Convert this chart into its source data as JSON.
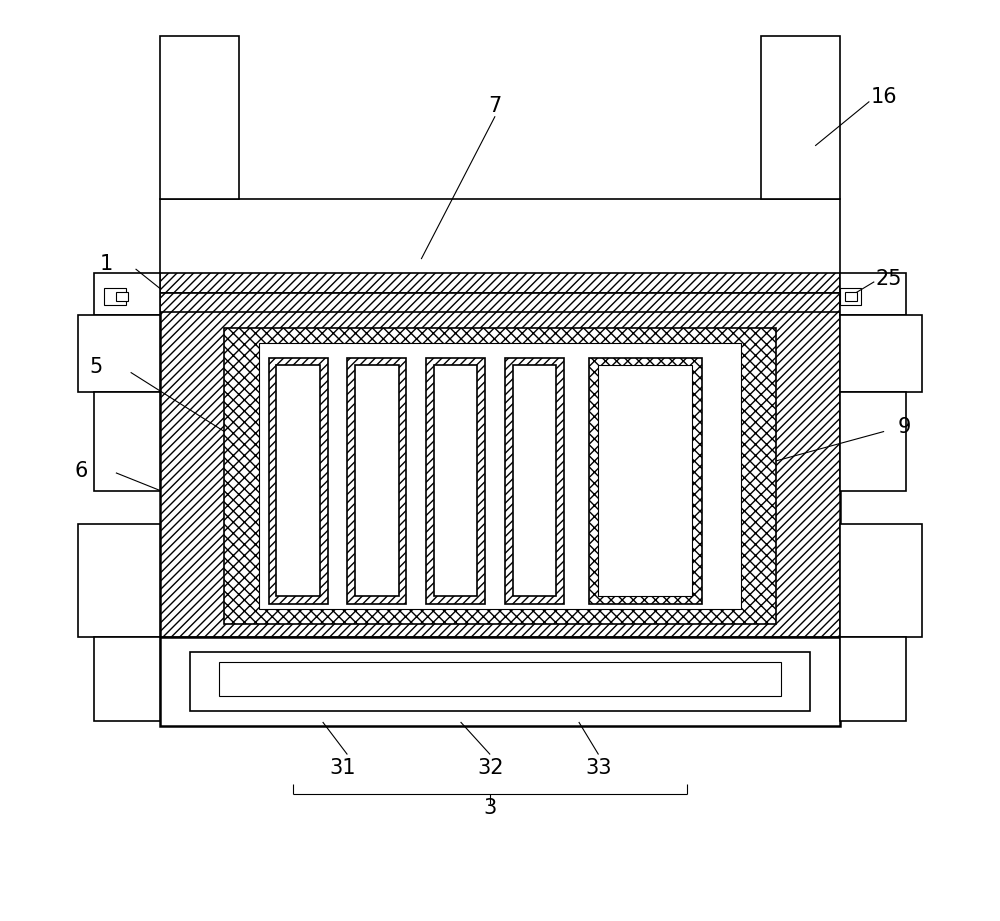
{
  "background_color": "#ffffff",
  "line_color": "#000000",
  "fig_width": 10.0,
  "fig_height": 9.21,
  "lw_thin": 0.8,
  "lw_med": 1.2,
  "lw_thick": 1.8
}
